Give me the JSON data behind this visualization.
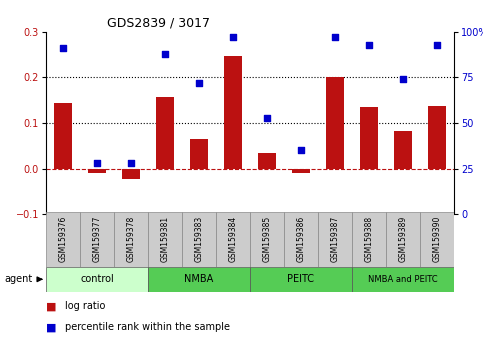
{
  "title": "GDS2839 / 3017",
  "samples": [
    "GSM159376",
    "GSM159377",
    "GSM159378",
    "GSM159381",
    "GSM159383",
    "GSM159384",
    "GSM159385",
    "GSM159386",
    "GSM159387",
    "GSM159388",
    "GSM159389",
    "GSM159390"
  ],
  "log_ratio": [
    0.145,
    -0.01,
    -0.022,
    0.158,
    0.065,
    0.248,
    0.035,
    -0.01,
    0.202,
    0.135,
    0.082,
    0.138
  ],
  "percentile_rank": [
    91,
    28,
    28,
    88,
    72,
    97,
    53,
    35,
    97,
    93,
    74,
    93
  ],
  "bar_color": "#bb1111",
  "dot_color": "#0000cc",
  "bar_width": 0.55,
  "ylim_left": [
    -0.1,
    0.3
  ],
  "ylim_right": [
    0,
    100
  ],
  "yticks_left": [
    -0.1,
    0.0,
    0.1,
    0.2,
    0.3
  ],
  "yticks_right": [
    0,
    25,
    50,
    75,
    100
  ],
  "dotted_lines": [
    0.1,
    0.2
  ],
  "groups": [
    {
      "label": "control",
      "start": 0,
      "end": 3,
      "color": "#ccffcc"
    },
    {
      "label": "NMBA",
      "start": 3,
      "end": 6,
      "color": "#55cc55"
    },
    {
      "label": "PEITC",
      "start": 6,
      "end": 9,
      "color": "#55cc55"
    },
    {
      "label": "NMBA and PEITC",
      "start": 9,
      "end": 12,
      "color": "#55cc55"
    }
  ],
  "sample_box_color": "#cccccc",
  "sample_box_edge": "#888888"
}
